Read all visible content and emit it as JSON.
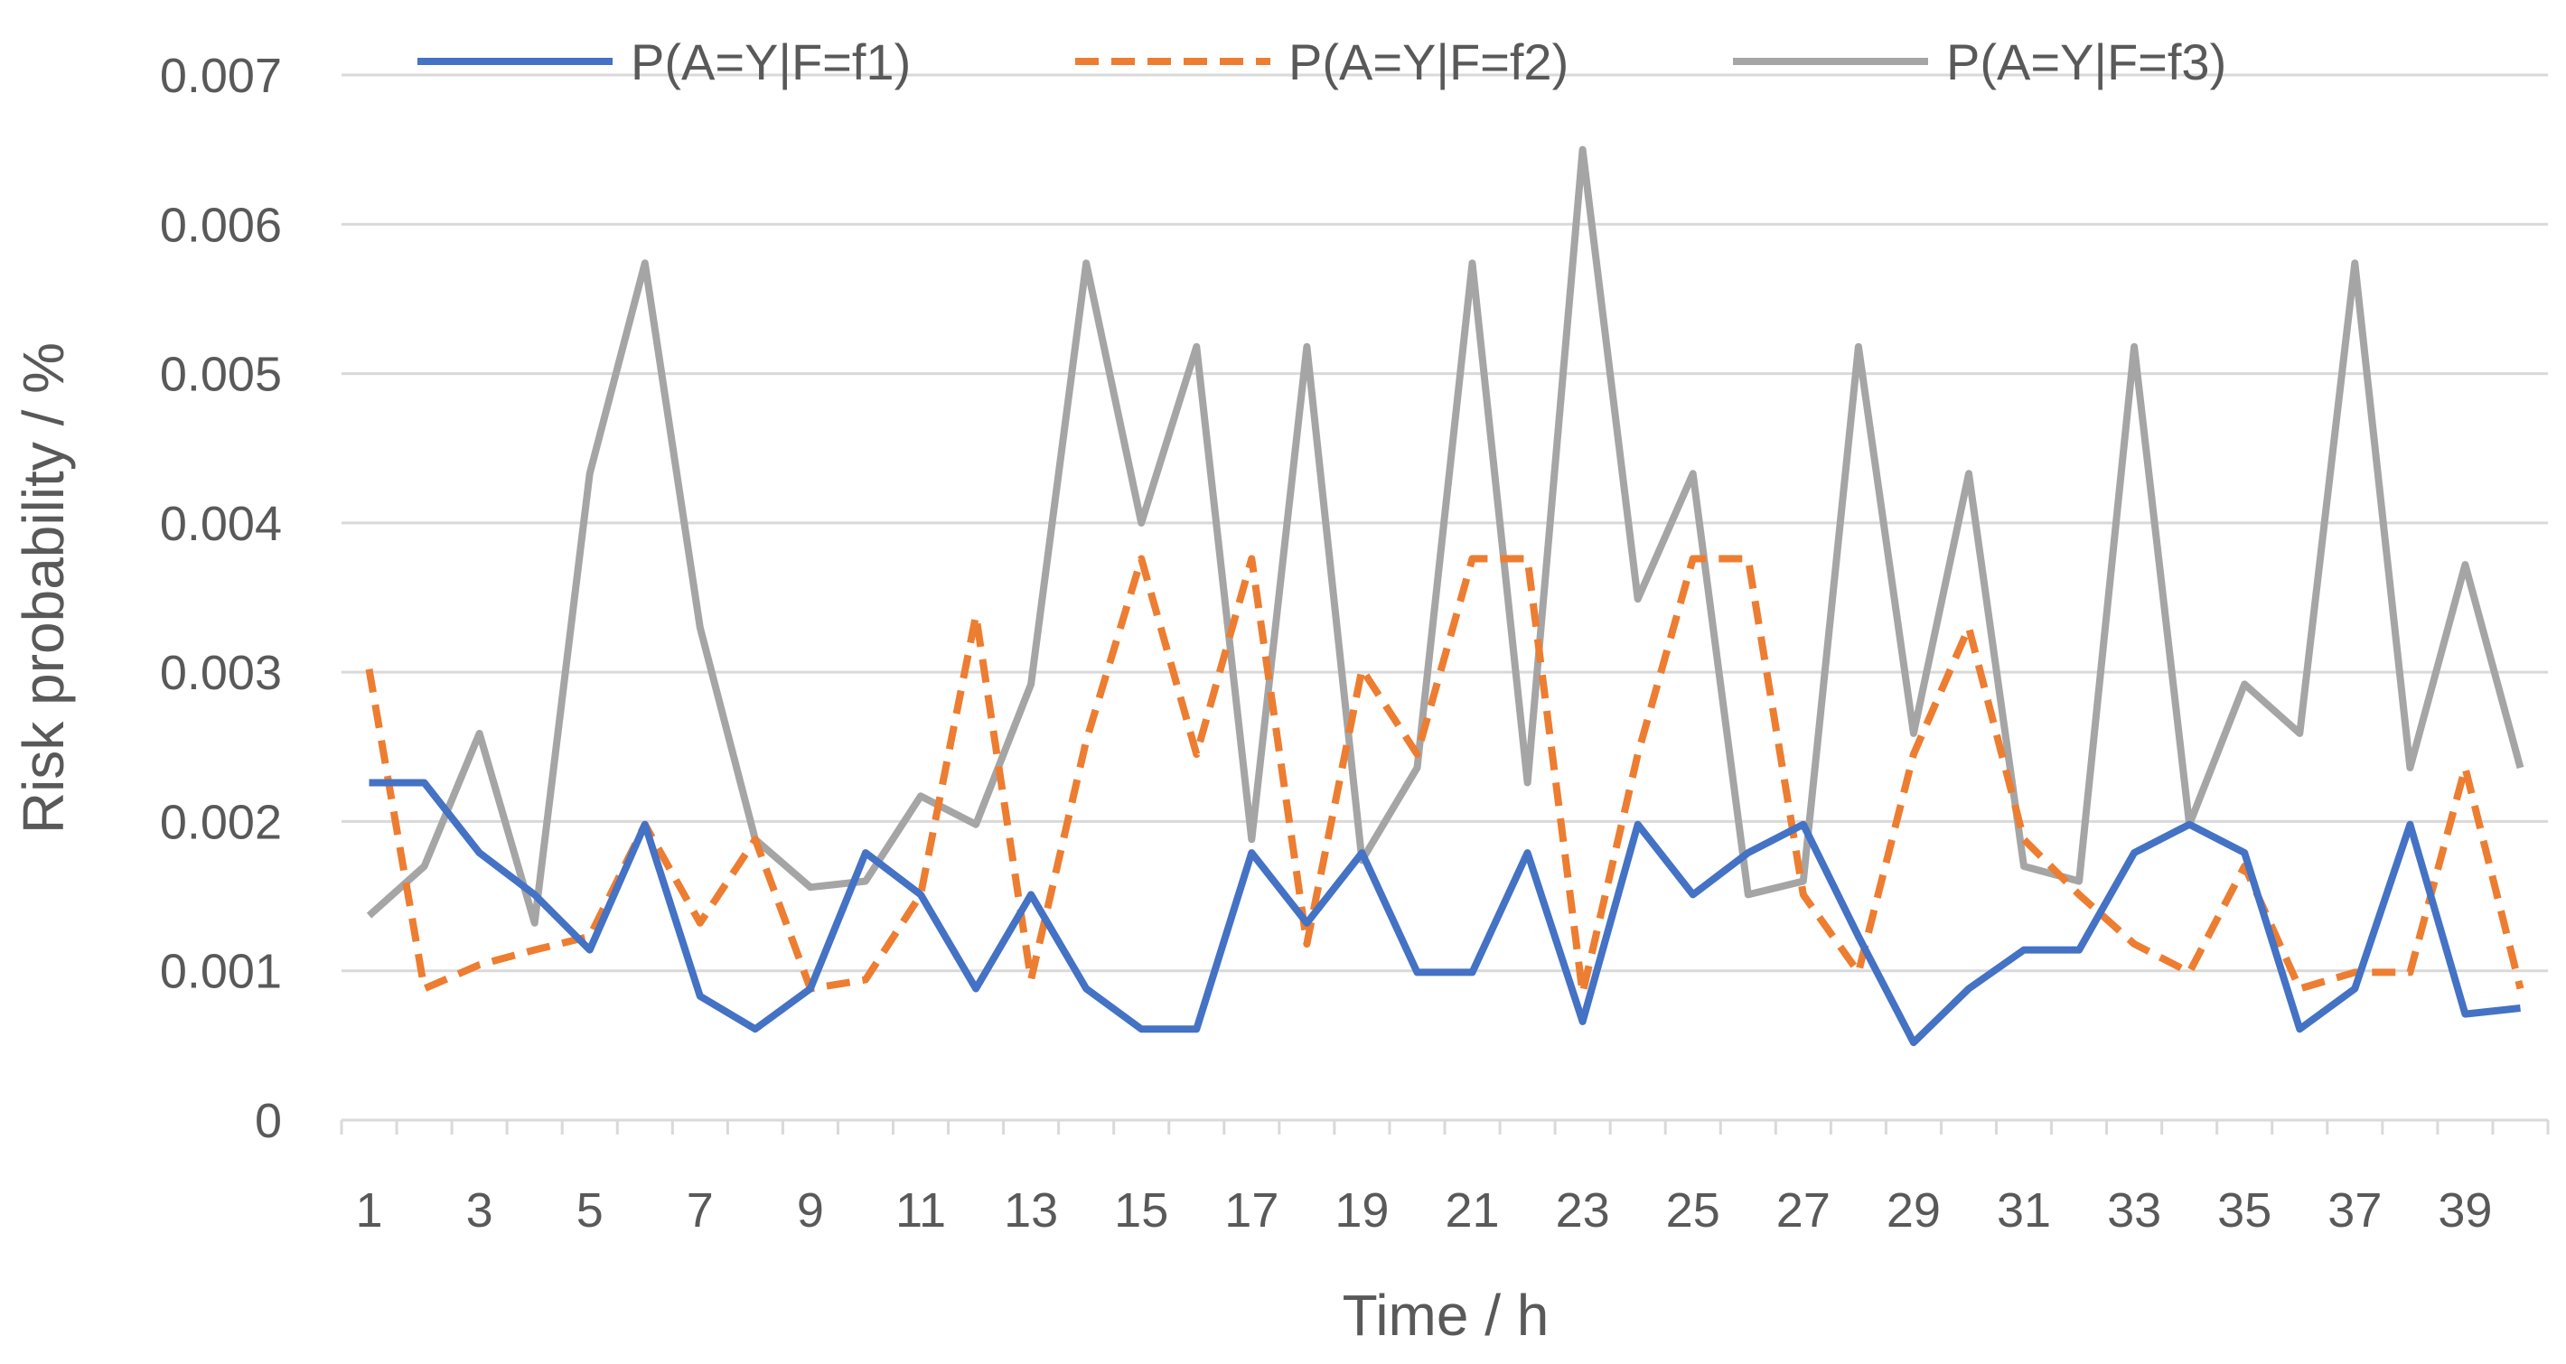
{
  "chart_data": {
    "type": "line",
    "title": "",
    "xlabel": "Time / h",
    "ylabel": "Risk probability / %",
    "x": [
      1,
      2,
      3,
      4,
      5,
      6,
      7,
      8,
      9,
      10,
      11,
      12,
      13,
      14,
      15,
      16,
      17,
      18,
      19,
      20,
      21,
      22,
      23,
      24,
      25,
      26,
      27,
      28,
      29,
      30,
      31,
      32,
      33,
      34,
      35,
      36,
      37,
      38,
      39,
      40
    ],
    "x_tick_labels": [
      "1",
      "3",
      "5",
      "7",
      "9",
      "11",
      "13",
      "15",
      "17",
      "19",
      "21",
      "23",
      "25",
      "27",
      "29",
      "31",
      "33",
      "35",
      "37",
      "39"
    ],
    "y_tick_labels": [
      "0",
      "0.001",
      "0.002",
      "0.003",
      "0.004",
      "0.005",
      "0.006",
      "0.007"
    ],
    "ylim": [
      0,
      0.007
    ],
    "grid": "horizontal",
    "legend_position": "top",
    "series": [
      {
        "name": "P(A=Y|F=f1)",
        "color": "#4472c4",
        "dash": "solid",
        "values": [
          0.00226,
          0.00226,
          0.00179,
          0.00151,
          0.00114,
          0.00198,
          0.00083,
          0.00061,
          0.00088,
          0.00179,
          0.00151,
          0.00088,
          0.00151,
          0.00088,
          0.00061,
          0.00061,
          0.00179,
          0.00132,
          0.00179,
          0.00099,
          0.00099,
          0.00179,
          0.00066,
          0.00198,
          0.00151,
          0.00179,
          0.00198,
          0.00123,
          0.00052,
          0.00088,
          0.00114,
          0.00114,
          0.00179,
          0.00198,
          0.00179,
          0.00061,
          0.00088,
          0.00198,
          0.00071,
          0.00075
        ]
      },
      {
        "name": "P(A=Y|F=f2)",
        "color": "#ed7d31",
        "dash": "dashed",
        "values": [
          0.00302,
          0.00088,
          0.00104,
          0.00114,
          0.00123,
          0.00198,
          0.00132,
          0.00188,
          0.00088,
          0.00094,
          0.00151,
          0.00338,
          0.00094,
          0.00254,
          0.00376,
          0.00245,
          0.00376,
          0.00118,
          0.00302,
          0.00245,
          0.00376,
          0.00376,
          0.00085,
          0.00245,
          0.00376,
          0.00376,
          0.00151,
          0.00099,
          0.00245,
          0.0033,
          0.00188,
          0.00151,
          0.00118,
          0.00099,
          0.0017,
          0.00088,
          0.00099,
          0.00099,
          0.00236,
          0.00088
        ]
      },
      {
        "name": "P(A=Y|F=f3)",
        "color": "#a5a5a5",
        "dash": "solid",
        "values": [
          0.00137,
          0.0017,
          0.00259,
          0.00132,
          0.00433,
          0.00574,
          0.0033,
          0.00188,
          0.00156,
          0.0016,
          0.00217,
          0.00198,
          0.00292,
          0.00574,
          0.004,
          0.00518,
          0.00188,
          0.00518,
          0.00174,
          0.00236,
          0.00574,
          0.00226,
          0.0065,
          0.00349,
          0.00433,
          0.00151,
          0.0016,
          0.00518,
          0.00259,
          0.00433,
          0.0017,
          0.0016,
          0.00518,
          0.00198,
          0.00292,
          0.00259,
          0.00574,
          0.00236,
          0.00372,
          0.00236
        ]
      }
    ]
  }
}
